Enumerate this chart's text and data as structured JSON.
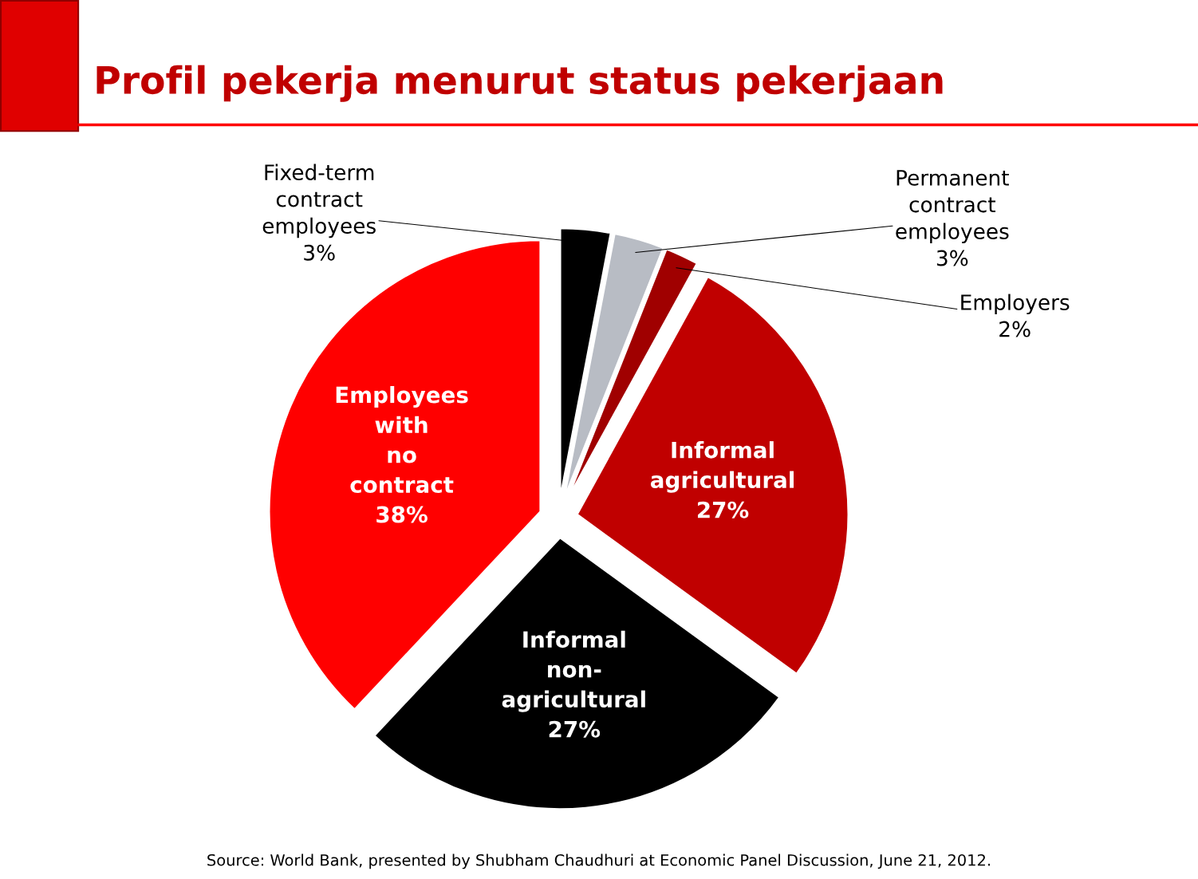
{
  "chart_data": {
    "type": "pie",
    "title": "Profil pekerja menurut status pekerjaan",
    "categories": [
      "Fixed-term\ncontract\nemployees",
      "Permanent\ncontract\nemployees",
      "Employers",
      "Informal\nagricultural",
      "Informal\nnon-\nagricultural",
      "Employees\nwith\nno\ncontract"
    ],
    "values": [
      3,
      3,
      2,
      27,
      27,
      38
    ],
    "value_labels": [
      "3%",
      "3%",
      "2%",
      "27%",
      "27%",
      "38%"
    ],
    "colors": [
      "#000000",
      "#b8bcc4",
      "#a00000",
      "#c00000",
      "#000000",
      "#ff0000"
    ],
    "annotations": [
      "Source: World Bank, presented by Shubham Chaudhuri at Economic Panel Discussion, June 21, 2012."
    ]
  }
}
